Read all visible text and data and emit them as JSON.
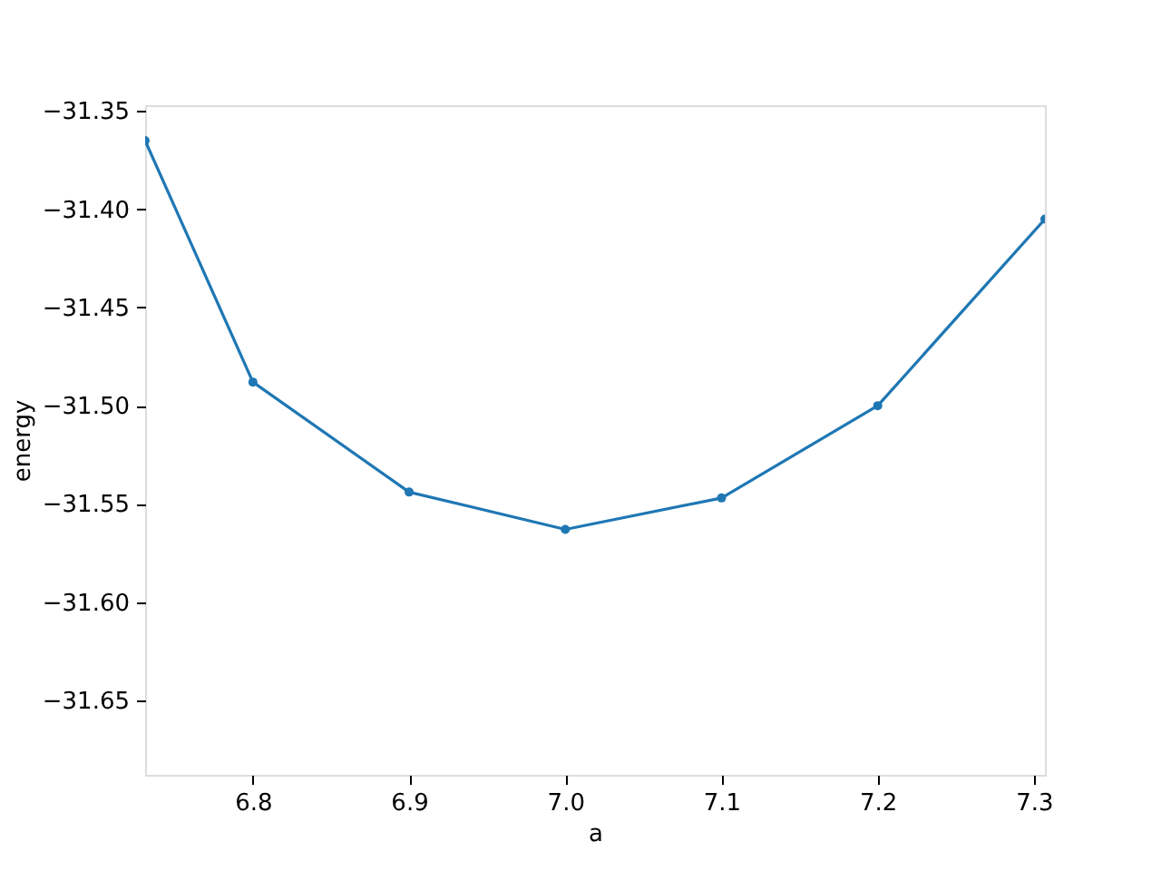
{
  "chart_data": {
    "type": "line",
    "xlabel": "a",
    "ylabel": "energy",
    "x": [
      6.731,
      6.8,
      6.9,
      7.0,
      7.1,
      7.2,
      7.307
    ],
    "series": [
      {
        "color": "#1f77b4",
        "values": [
          -31.365,
          -31.488,
          -31.544,
          -31.563,
          -31.547,
          -31.5,
          -31.405
        ]
      }
    ],
    "xlim": [
      6.731,
      7.307
    ],
    "ylim": [
      -31.688,
      -31.347
    ],
    "xticks": [
      {
        "value": 6.8,
        "label": "6.8"
      },
      {
        "value": 6.9,
        "label": "6.9"
      },
      {
        "value": 7.0,
        "label": "7.0"
      },
      {
        "value": 7.1,
        "label": "7.1"
      },
      {
        "value": 7.2,
        "label": "7.2"
      },
      {
        "value": 7.3,
        "label": "7.3"
      }
    ],
    "yticks": [
      {
        "value": -31.65,
        "label": "−31.65"
      },
      {
        "value": -31.6,
        "label": "−31.60"
      },
      {
        "value": -31.55,
        "label": "−31.55"
      },
      {
        "value": -31.5,
        "label": "−31.50"
      },
      {
        "value": -31.45,
        "label": "−31.45"
      },
      {
        "value": -31.4,
        "label": "−31.40"
      },
      {
        "value": -31.35,
        "label": "−31.35"
      }
    ],
    "marker": "circle",
    "line_style": "solid",
    "grid": false
  }
}
